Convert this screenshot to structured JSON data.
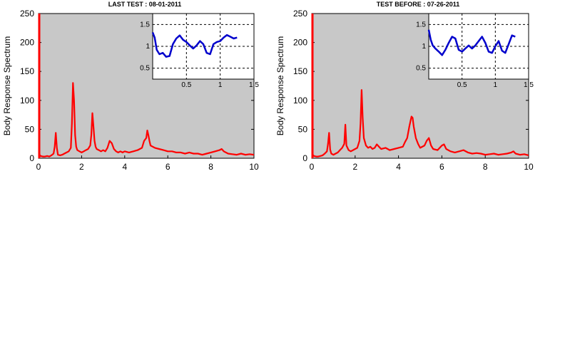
{
  "chart_data": [
    {
      "type": "line",
      "title": "LAST TEST : 08-01-2011",
      "xlabel": "",
      "ylabel": "Body Response Spectrum",
      "xlim": [
        0,
        10
      ],
      "ylim": [
        0,
        250
      ],
      "xticks": [
        "0",
        "2",
        "4",
        "6",
        "8",
        "10"
      ],
      "yticks": [
        "0",
        "50",
        "100",
        "150",
        "200",
        "250"
      ],
      "background": "#c8c8c8",
      "color": "#ff0000",
      "grid": false,
      "series": [
        {
          "x": [
            0,
            0.02,
            0.05,
            0.1,
            0.2,
            0.3,
            0.4,
            0.5,
            0.6,
            0.7,
            0.75,
            0.8,
            0.85,
            0.9,
            1.0,
            1.1,
            1.2,
            1.3,
            1.4,
            1.5,
            1.55,
            1.6,
            1.65,
            1.7,
            1.75,
            1.8,
            1.9,
            2.0,
            2.1,
            2.2,
            2.3,
            2.4,
            2.45,
            2.5,
            2.55,
            2.6,
            2.65,
            2.7,
            2.8,
            2.9,
            3.0,
            3.1,
            3.2,
            3.3,
            3.4,
            3.5,
            3.6,
            3.7,
            3.8,
            3.9,
            4.0,
            4.2,
            4.4,
            4.6,
            4.8,
            4.9,
            5.0,
            5.05,
            5.1,
            5.15,
            5.2,
            5.3,
            5.4,
            5.6,
            5.8,
            6.0,
            6.2,
            6.4,
            6.6,
            6.8,
            7.0,
            7.2,
            7.4,
            7.6,
            7.8,
            8.0,
            8.2,
            8.4,
            8.5,
            8.6,
            8.8,
            9.0,
            9.2,
            9.4,
            9.6,
            9.8,
            10.0
          ],
          "y": [
            250,
            20,
            6,
            4,
            3,
            3,
            4,
            3,
            5,
            8,
            20,
            44,
            18,
            6,
            5,
            6,
            8,
            10,
            12,
            18,
            60,
            130,
            100,
            40,
            20,
            14,
            12,
            10,
            12,
            14,
            16,
            22,
            40,
            78,
            55,
            30,
            20,
            16,
            14,
            12,
            14,
            12,
            18,
            30,
            26,
            16,
            12,
            10,
            12,
            10,
            12,
            10,
            12,
            14,
            18,
            30,
            35,
            48,
            40,
            30,
            22,
            20,
            18,
            16,
            14,
            12,
            12,
            10,
            10,
            8,
            10,
            8,
            8,
            6,
            8,
            10,
            12,
            14,
            16,
            12,
            8,
            7,
            6,
            8,
            6,
            7,
            6
          ]
        }
      ],
      "inset": {
        "type": "line",
        "xlim": [
          0,
          1.5
        ],
        "ylim": [
          0.25,
          1.75
        ],
        "xticks": [
          "0.5",
          "1",
          "1.5"
        ],
        "yticks": [
          "0.5",
          "1",
          "1.5"
        ],
        "grid": true,
        "color": "#0000cc",
        "x": [
          0.0,
          0.03,
          0.06,
          0.1,
          0.15,
          0.2,
          0.25,
          0.3,
          0.35,
          0.4,
          0.45,
          0.5,
          0.55,
          0.6,
          0.65,
          0.7,
          0.75,
          0.8,
          0.85,
          0.9,
          0.95,
          1.0,
          1.05,
          1.1,
          1.15,
          1.2,
          1.25
        ],
        "y": [
          1.32,
          1.2,
          0.92,
          0.82,
          0.85,
          0.76,
          0.78,
          1.05,
          1.18,
          1.25,
          1.15,
          1.1,
          1.02,
          0.95,
          1.02,
          1.12,
          1.05,
          0.85,
          0.82,
          1.05,
          1.1,
          1.12,
          1.2,
          1.26,
          1.22,
          1.18,
          1.2
        ]
      }
    },
    {
      "type": "line",
      "title": "TEST BEFORE : 07-26-2011",
      "xlabel": "",
      "ylabel": "Body Response Spectrum",
      "xlim": [
        0,
        10
      ],
      "ylim": [
        0,
        250
      ],
      "xticks": [
        "0",
        "2",
        "4",
        "6",
        "8",
        "10"
      ],
      "yticks": [
        "0",
        "50",
        "100",
        "150",
        "200",
        "250"
      ],
      "background": "#c8c8c8",
      "color": "#ff0000",
      "grid": false,
      "series": [
        {
          "x": [
            0,
            0.02,
            0.05,
            0.1,
            0.2,
            0.3,
            0.4,
            0.5,
            0.6,
            0.7,
            0.75,
            0.8,
            0.85,
            0.9,
            1.0,
            1.1,
            1.2,
            1.3,
            1.4,
            1.5,
            1.55,
            1.6,
            1.7,
            1.8,
            1.9,
            2.0,
            2.1,
            2.2,
            2.25,
            2.3,
            2.35,
            2.4,
            2.5,
            2.6,
            2.7,
            2.8,
            2.9,
            3.0,
            3.1,
            3.2,
            3.4,
            3.6,
            3.8,
            4.0,
            4.2,
            4.3,
            4.4,
            4.5,
            4.6,
            4.65,
            4.7,
            4.8,
            4.9,
            5.0,
            5.2,
            5.3,
            5.4,
            5.5,
            5.6,
            5.8,
            6.0,
            6.1,
            6.2,
            6.4,
            6.6,
            6.8,
            7.0,
            7.2,
            7.4,
            7.6,
            7.8,
            8.0,
            8.2,
            8.4,
            8.6,
            8.8,
            9.0,
            9.2,
            9.3,
            9.4,
            9.6,
            9.8,
            10.0
          ],
          "y": [
            250,
            20,
            6,
            4,
            3,
            3,
            4,
            5,
            8,
            12,
            25,
            44,
            15,
            8,
            6,
            8,
            10,
            14,
            18,
            25,
            58,
            22,
            14,
            12,
            14,
            16,
            18,
            30,
            60,
            118,
            70,
            35,
            22,
            18,
            20,
            16,
            18,
            24,
            20,
            16,
            18,
            14,
            16,
            18,
            20,
            28,
            35,
            55,
            72,
            70,
            55,
            35,
            25,
            18,
            22,
            30,
            35,
            22,
            16,
            14,
            22,
            24,
            16,
            12,
            10,
            12,
            14,
            10,
            8,
            9,
            8,
            6,
            7,
            8,
            6,
            7,
            8,
            10,
            12,
            8,
            6,
            7,
            5
          ]
        }
      ],
      "inset": {
        "type": "line",
        "xlim": [
          0,
          1.5
        ],
        "ylim": [
          0.25,
          1.75
        ],
        "xticks": [
          "0.5",
          "1",
          "1.5"
        ],
        "yticks": [
          "0.5",
          "1",
          "1.5"
        ],
        "grid": true,
        "color": "#0000cc",
        "x": [
          0.0,
          0.03,
          0.06,
          0.1,
          0.15,
          0.2,
          0.25,
          0.3,
          0.35,
          0.4,
          0.45,
          0.5,
          0.55,
          0.6,
          0.65,
          0.7,
          0.75,
          0.8,
          0.85,
          0.9,
          0.95,
          1.0,
          1.05,
          1.1,
          1.15,
          1.2,
          1.25,
          1.3
        ],
        "y": [
          1.38,
          1.15,
          1.02,
          0.95,
          0.88,
          0.8,
          0.92,
          1.08,
          1.22,
          1.18,
          0.92,
          0.88,
          0.95,
          1.02,
          0.95,
          1.02,
          1.12,
          1.22,
          1.08,
          0.88,
          0.85,
          1.0,
          1.12,
          0.9,
          0.85,
          1.05,
          1.25,
          1.22
        ]
      }
    }
  ]
}
